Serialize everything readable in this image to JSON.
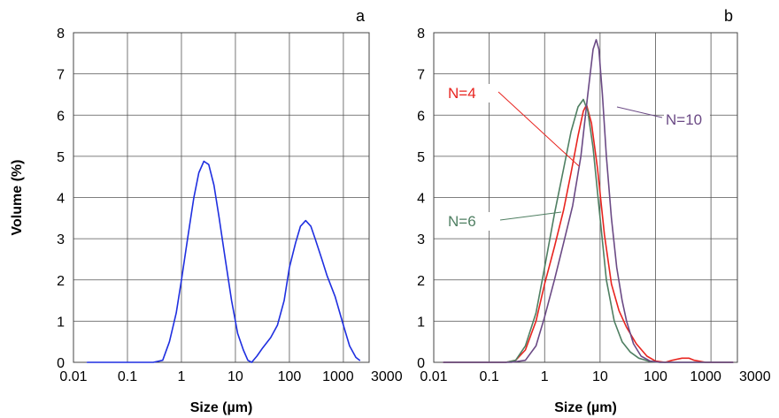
{
  "chart_data": [
    {
      "type": "line",
      "panel_label": "a",
      "xlabel": "Size (µm)",
      "ylabel": "Volume (%)",
      "x_scale": "log",
      "xlim": [
        0.01,
        3000
      ],
      "ylim": [
        0,
        8
      ],
      "x_tick_labels": [
        "0.01",
        "0.1",
        "1",
        "10",
        "100",
        "1000",
        "3000"
      ],
      "x_tick_values": [
        0.01,
        0.1,
        1,
        10,
        100,
        1000,
        3000
      ],
      "y_tick_labels": [
        "0",
        "1",
        "2",
        "3",
        "4",
        "5",
        "6",
        "7",
        "8"
      ],
      "grid": true,
      "series": [
        {
          "color": "#1f2fe0",
          "x": [
            0.018,
            0.3,
            0.45,
            0.6,
            0.8,
            1.0,
            1.3,
            1.7,
            2.1,
            2.6,
            3.2,
            4.0,
            5.0,
            6.5,
            8.5,
            11,
            14,
            17,
            20,
            25,
            32,
            45,
            60,
            80,
            100,
            130,
            160,
            200,
            250,
            300,
            400,
            500,
            700,
            1000,
            1300,
            1700,
            2000
          ],
          "y": [
            0.0,
            0.0,
            0.05,
            0.5,
            1.2,
            2.0,
            3.0,
            4.0,
            4.6,
            4.88,
            4.8,
            4.3,
            3.5,
            2.5,
            1.5,
            0.7,
            0.3,
            0.05,
            0.0,
            0.15,
            0.35,
            0.6,
            0.9,
            1.5,
            2.3,
            2.9,
            3.3,
            3.44,
            3.3,
            3.0,
            2.5,
            2.1,
            1.6,
            0.9,
            0.4,
            0.12,
            0.05
          ]
        }
      ]
    },
    {
      "type": "line",
      "panel_label": "b",
      "xlabel": "Size (µm)",
      "x_scale": "log",
      "xlim": [
        0.01,
        3000
      ],
      "ylim": [
        0,
        8
      ],
      "x_tick_labels": [
        "0.01",
        "0.1",
        "1",
        "10",
        "100",
        "1000",
        "3000"
      ],
      "x_tick_values": [
        0.01,
        0.1,
        1,
        10,
        100,
        1000,
        3000
      ],
      "y_tick_labels": [
        "0",
        "1",
        "2",
        "3",
        "4",
        "5",
        "6",
        "7",
        "8"
      ],
      "grid": true,
      "series": [
        {
          "name": "N=4",
          "color": "#e8241f",
          "x": [
            0.015,
            0.2,
            0.3,
            0.45,
            0.7,
            1.0,
            1.5,
            2.2,
            3.0,
            4.0,
            5.0,
            5.7,
            7.0,
            9.0,
            12,
            16,
            22,
            30,
            45,
            70,
            100,
            150,
            200,
            300,
            400,
            500,
            800,
            2500
          ],
          "y": [
            0.0,
            0.0,
            0.05,
            0.3,
            1.0,
            1.9,
            2.8,
            3.7,
            4.6,
            5.5,
            6.1,
            6.25,
            5.8,
            4.7,
            3.1,
            1.9,
            1.25,
            0.85,
            0.45,
            0.15,
            0.03,
            0.0,
            0.05,
            0.1,
            0.1,
            0.05,
            0.0,
            0.0
          ]
        },
        {
          "name": "N=6",
          "color": "#4f7f62",
          "x": [
            0.015,
            0.2,
            0.3,
            0.45,
            0.7,
            1.0,
            1.5,
            2.2,
            3.0,
            4.0,
            5.0,
            6.0,
            7.5,
            10,
            13,
            18,
            25,
            35,
            50,
            80,
            120,
            200,
            2500
          ],
          "y": [
            0.0,
            0.0,
            0.05,
            0.4,
            1.2,
            2.3,
            3.6,
            4.7,
            5.6,
            6.2,
            6.38,
            6.1,
            5.2,
            3.5,
            2.0,
            1.0,
            0.5,
            0.25,
            0.1,
            0.02,
            0.0,
            0.0,
            0.0
          ]
        },
        {
          "name": "N=10",
          "color": "#6b4a85",
          "x": [
            0.015,
            0.25,
            0.45,
            0.7,
            1.0,
            1.5,
            2.2,
            3.2,
            4.5,
            6.0,
            7.5,
            8.5,
            9.5,
            11,
            13,
            16,
            20,
            25,
            30,
            40,
            55,
            80,
            120,
            200,
            2500
          ],
          "y": [
            0.0,
            0.0,
            0.05,
            0.4,
            1.1,
            2.0,
            2.9,
            3.8,
            5.0,
            6.5,
            7.6,
            7.83,
            7.6,
            6.5,
            5.0,
            3.5,
            2.3,
            1.5,
            1.0,
            0.45,
            0.15,
            0.03,
            0.0,
            0.0,
            0.0
          ]
        }
      ]
    }
  ]
}
